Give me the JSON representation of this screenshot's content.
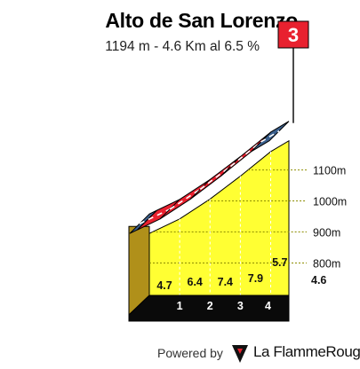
{
  "header": {
    "title": "Alto de San Lorenzo",
    "subtitle": "1194 m - 4.6 Km al 6.5 %"
  },
  "chart_data": {
    "type": "area",
    "title": "Alto de San Lorenzo",
    "subtitle": "1194 m - 4.6 Km al 6.5 %",
    "x": [
      0,
      1,
      2,
      3,
      4,
      4.6
    ],
    "elevation_m": [
      895,
      942,
      1006,
      1080,
      1159,
      1194
    ],
    "segment_gradients": [
      "4.7",
      "6.4",
      "7.4",
      "7.9",
      "5.7"
    ],
    "km_labels": [
      "1",
      "2",
      "3",
      "4"
    ],
    "total_km_label": "4.6",
    "y_ticks": [
      "800m",
      "900m",
      "1000m",
      "1100m"
    ],
    "y_tick_values": [
      800,
      900,
      1000,
      1100
    ],
    "ylim": [
      724,
      1200
    ],
    "xlim": [
      0,
      4.6
    ],
    "category_badge": "3",
    "colors": {
      "fill": "#ffff33",
      "base": "#0a0a0a",
      "side": "#b0901a",
      "road_easy": "#3a5f8c",
      "road_hard": "#e8212f",
      "badge": "#e8212f",
      "grid": "#8c8c00"
    }
  },
  "footer": {
    "powered_by": "Powered by",
    "brand": "La FlammeRouge"
  }
}
